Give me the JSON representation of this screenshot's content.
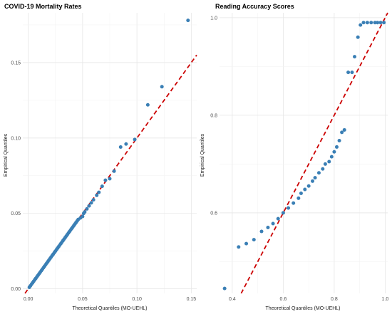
{
  "chart_data": [
    {
      "type": "scatter",
      "title": "COVID-19 Mortality Rates",
      "xlabel": "Theoretical Quantiles (MO-UEHL)",
      "ylabel": "Empirical Quantiles",
      "xlim": [
        -0.005,
        0.155
      ],
      "ylim": [
        -0.003,
        0.183
      ],
      "xticks": [
        0.0,
        0.05,
        0.1,
        0.15
      ],
      "xtick_labels": [
        "0.00",
        "0.05",
        "0.10",
        "0.15"
      ],
      "yticks": [
        0.0,
        0.05,
        0.1,
        0.15
      ],
      "ytick_labels": [
        "0.00",
        "0.05",
        "0.10",
        "0.15"
      ],
      "grid": true,
      "reference_line": {
        "style": "dashed",
        "color": "#cc0000",
        "slope": 1,
        "intercept": 0
      },
      "point_color": "#3a7fb5",
      "x": [
        0.001,
        0.002,
        0.003,
        0.004,
        0.005,
        0.006,
        0.007,
        0.008,
        0.009,
        0.01,
        0.011,
        0.012,
        0.013,
        0.014,
        0.015,
        0.016,
        0.017,
        0.018,
        0.019,
        0.02,
        0.021,
        0.022,
        0.023,
        0.024,
        0.025,
        0.026,
        0.027,
        0.028,
        0.029,
        0.03,
        0.031,
        0.032,
        0.033,
        0.034,
        0.035,
        0.036,
        0.037,
        0.038,
        0.039,
        0.04,
        0.041,
        0.042,
        0.043,
        0.044,
        0.045,
        0.046,
        0.048,
        0.05,
        0.051,
        0.052,
        0.054,
        0.056,
        0.058,
        0.06,
        0.063,
        0.065,
        0.068,
        0.071,
        0.075,
        0.079,
        0.085,
        0.09,
        0.098,
        0.11,
        0.123,
        0.147
      ],
      "y": [
        0.001,
        0.002,
        0.003,
        0.004,
        0.005,
        0.006,
        0.007,
        0.008,
        0.009,
        0.01,
        0.011,
        0.012,
        0.013,
        0.014,
        0.015,
        0.016,
        0.017,
        0.018,
        0.019,
        0.02,
        0.021,
        0.022,
        0.023,
        0.024,
        0.025,
        0.026,
        0.027,
        0.028,
        0.029,
        0.03,
        0.031,
        0.032,
        0.033,
        0.034,
        0.035,
        0.036,
        0.037,
        0.038,
        0.039,
        0.04,
        0.041,
        0.042,
        0.043,
        0.044,
        0.045,
        0.046,
        0.047,
        0.048,
        0.05,
        0.051,
        0.053,
        0.055,
        0.057,
        0.059,
        0.062,
        0.064,
        0.068,
        0.072,
        0.073,
        0.078,
        0.094,
        0.096,
        0.099,
        0.122,
        0.134,
        0.178
      ]
    },
    {
      "type": "scatter",
      "title": "Reading Accuracy Scores",
      "xlabel": "Theoretical Quantiles (MO-UEHL)",
      "ylabel": "Empirical Quantiles",
      "xlim": [
        0.35,
        1.01
      ],
      "ylim": [
        0.435,
        1.01
      ],
      "xticks": [
        0.4,
        0.6,
        0.8,
        1.0
      ],
      "xtick_labels": [
        "0.4",
        "0.6",
        "0.8",
        "1.0"
      ],
      "yticks": [
        0.6,
        0.8,
        1.0
      ],
      "ytick_labels": [
        "0.6",
        "0.8",
        "1.0"
      ],
      "grid": true,
      "reference_line": {
        "style": "dashed",
        "color": "#cc0000",
        "slope": 1,
        "intercept": 0
      },
      "point_color": "#3a7fb5",
      "x": [
        0.37,
        0.425,
        0.455,
        0.485,
        0.515,
        0.54,
        0.56,
        0.58,
        0.6,
        0.62,
        0.64,
        0.66,
        0.67,
        0.685,
        0.7,
        0.715,
        0.725,
        0.74,
        0.755,
        0.765,
        0.78,
        0.79,
        0.8,
        0.81,
        0.82,
        0.83,
        0.84,
        0.855,
        0.87,
        0.88,
        0.893,
        0.903,
        0.915,
        0.93,
        0.945,
        0.96,
        0.97,
        0.982,
        0.995
      ],
      "y": [
        0.445,
        0.53,
        0.537,
        0.545,
        0.562,
        0.57,
        0.578,
        0.588,
        0.6,
        0.61,
        0.62,
        0.63,
        0.64,
        0.648,
        0.655,
        0.665,
        0.672,
        0.682,
        0.69,
        0.7,
        0.705,
        0.715,
        0.725,
        0.735,
        0.748,
        0.765,
        0.77,
        0.888,
        0.888,
        0.92,
        0.96,
        0.985,
        0.99,
        0.99,
        0.99,
        0.99,
        0.99,
        0.99,
        0.99
      ]
    }
  ]
}
